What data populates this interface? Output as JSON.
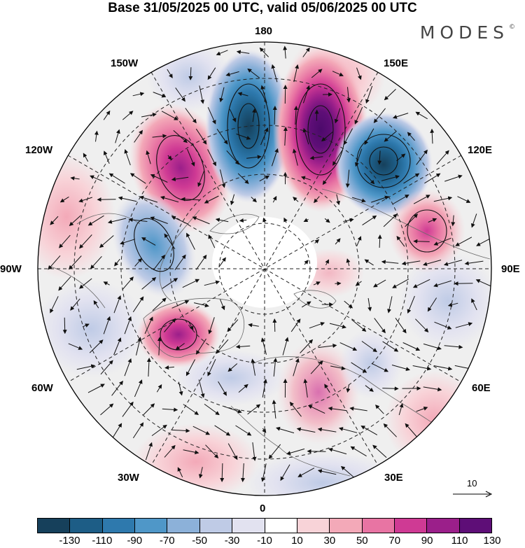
{
  "title": "Base 31/05/2025 00 UTC, valid 05/06/2025 00 UTC",
  "brand": {
    "name": "MODES",
    "mark": "©"
  },
  "longitude_labels": {
    "n": "180",
    "s": "0",
    "w": "90W",
    "e": "90E",
    "nw1": "150W",
    "nw2": "120W",
    "sw1": "60W",
    "sw2": "30W",
    "ne1": "150E",
    "ne2": "120E",
    "se1": "60E",
    "se2": "30E"
  },
  "reference_vector": {
    "value": "10",
    "icon": "arrow-right-icon"
  },
  "colorbar": {
    "ticks": [
      "-130",
      "-110",
      "-90",
      "-70",
      "-50",
      "-30",
      "-10",
      "10",
      "30",
      "50",
      "70",
      "90",
      "110",
      "130"
    ],
    "colors": [
      "#16405b",
      "#1d5d86",
      "#2e79ad",
      "#4f97c8",
      "#8cb1d9",
      "#bfcbe6",
      "#e2e2f0",
      "#ffffff",
      "#f8d3d8",
      "#f3a9b8",
      "#e874a3",
      "#cf3a94",
      "#9b1f8a",
      "#5e0e77"
    ]
  },
  "anomaly_centers": [
    {
      "name": "trough-near-dateline",
      "value": -110
    },
    {
      "name": "ridge-near-170E",
      "value": 130
    },
    {
      "name": "trough-near-130E",
      "value": -110
    },
    {
      "name": "ridge-near-130W",
      "value": 90
    },
    {
      "name": "ridge-near-100E",
      "value": 80
    },
    {
      "name": "trough-near-105W",
      "value": -60
    },
    {
      "name": "ridge-near-70W",
      "value": 80
    }
  ]
}
